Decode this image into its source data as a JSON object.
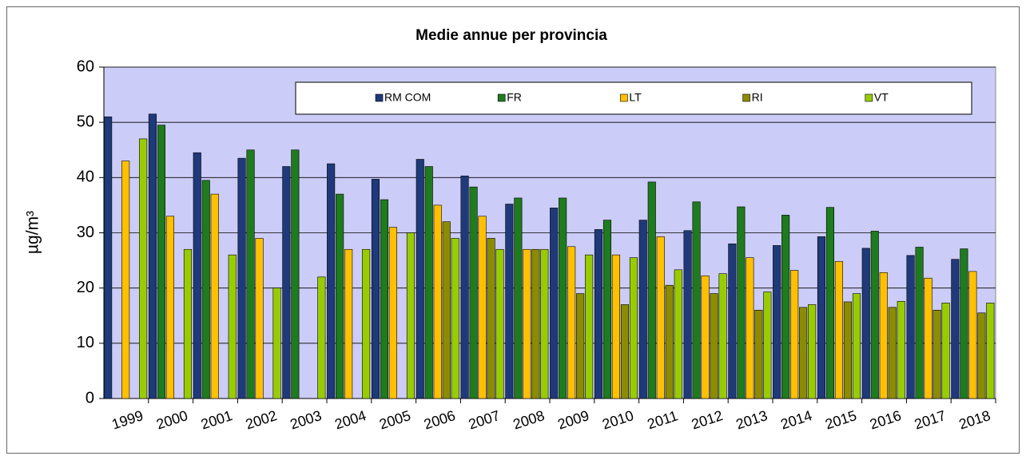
{
  "chart_data": {
    "type": "bar",
    "title": "Medie annue per provincia",
    "y_label": "µg/m³",
    "categories": [
      "1999",
      "2000",
      "2001",
      "2002",
      "2003",
      "2004",
      "2005",
      "2006",
      "2007",
      "2008",
      "2009",
      "2010",
      "2011",
      "2012",
      "2013",
      "2014",
      "2015",
      "2016",
      "2017",
      "2018"
    ],
    "series": [
      {
        "name": "RM COM",
        "color": "#1f3a7a",
        "values": [
          51,
          51.5,
          44.5,
          43.5,
          42,
          42.5,
          39.7,
          43.3,
          40.3,
          35.2,
          34.5,
          30.6,
          32.3,
          30.4,
          28,
          27.7,
          29.3,
          27.2,
          25.9,
          25.2
        ]
      },
      {
        "name": "FR",
        "color": "#1e7b1e",
        "values": [
          null,
          49.5,
          39.5,
          45,
          45,
          37,
          36,
          42,
          38.3,
          36.3,
          36.3,
          32.3,
          39.2,
          35.6,
          34.7,
          33.2,
          34.6,
          30.3,
          27.4,
          27.1
        ]
      },
      {
        "name": "LT",
        "color": "#ffc000",
        "values": [
          43,
          33,
          37,
          29,
          null,
          27,
          31,
          35,
          33,
          27,
          27.5,
          26,
          29.3,
          22.2,
          25.5,
          23.2,
          24.8,
          22.8,
          21.8,
          23
        ]
      },
      {
        "name": "RI",
        "color": "#8c8c00",
        "values": [
          null,
          null,
          null,
          null,
          null,
          null,
          null,
          32,
          29,
          27,
          19,
          17,
          20.5,
          19,
          16,
          16.5,
          17.5,
          16.5,
          16,
          15.5
        ]
      },
      {
        "name": "VT",
        "color": "#99cc00",
        "values": [
          47,
          27,
          26,
          20,
          22,
          27,
          30,
          29,
          27,
          27,
          26,
          25.5,
          23.3,
          22.6,
          19.3,
          17,
          19,
          17.6,
          17.3,
          17.3
        ]
      }
    ],
    "ylim": [
      0,
      60
    ],
    "yticks": [
      0,
      10,
      20,
      30,
      40,
      50,
      60
    ],
    "grid": true,
    "legend": "top",
    "plot_background": "#ccccf8"
  }
}
